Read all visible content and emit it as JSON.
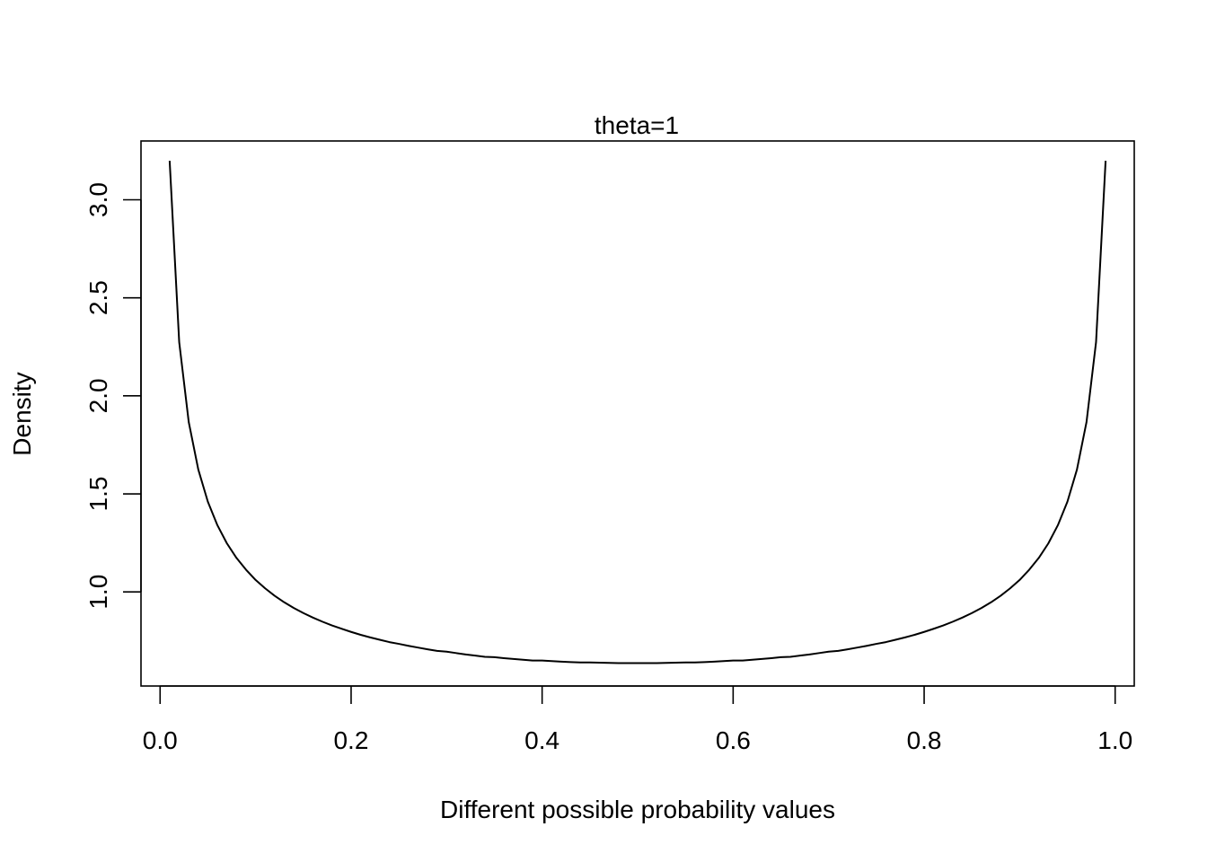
{
  "chart_data": {
    "type": "line",
    "title": "theta=1",
    "xlabel": "Different possible probability values",
    "ylabel": "Density",
    "xlim": [
      -0.02,
      1.02
    ],
    "ylim": [
      0.52,
      3.3
    ],
    "grid": false,
    "legend": "none",
    "x_ticks": [
      0.0,
      0.2,
      0.4,
      0.6,
      0.8,
      1.0
    ],
    "x_tick_labels": [
      "0.0",
      "0.2",
      "0.4",
      "0.6",
      "0.8",
      "1.0"
    ],
    "y_ticks": [
      1.0,
      1.5,
      2.0,
      2.5,
      3.0
    ],
    "y_tick_labels": [
      "1.0",
      "1.5",
      "2.0",
      "2.5",
      "3.0"
    ],
    "line_color": "#000000",
    "series": [
      {
        "x": [
          0.01,
          0.02,
          0.03,
          0.04,
          0.05,
          0.06,
          0.07,
          0.08,
          0.09,
          0.1,
          0.11,
          0.12,
          0.13,
          0.14,
          0.15,
          0.16,
          0.17,
          0.18,
          0.19,
          0.2,
          0.21,
          0.22,
          0.23,
          0.24,
          0.25,
          0.26,
          0.27,
          0.28,
          0.29,
          0.3,
          0.31,
          0.32,
          0.33,
          0.34,
          0.35,
          0.36,
          0.37,
          0.38,
          0.39,
          0.4,
          0.41,
          0.42,
          0.43,
          0.44,
          0.45,
          0.46,
          0.47,
          0.48,
          0.49,
          0.5,
          0.51,
          0.52,
          0.53,
          0.54,
          0.55,
          0.56,
          0.57,
          0.58,
          0.59,
          0.6,
          0.61,
          0.62,
          0.63,
          0.64,
          0.65,
          0.66,
          0.67,
          0.68,
          0.69,
          0.7,
          0.71,
          0.72,
          0.73,
          0.74,
          0.75,
          0.76,
          0.77,
          0.78,
          0.79,
          0.8,
          0.81,
          0.82,
          0.83,
          0.84,
          0.85,
          0.86,
          0.87,
          0.88,
          0.89,
          0.9,
          0.91,
          0.92,
          0.93,
          0.94,
          0.95,
          0.96,
          0.97,
          0.98,
          0.99
        ],
        "y": [
          3.199,
          2.274,
          1.866,
          1.624,
          1.46,
          1.34,
          1.247,
          1.173,
          1.113,
          1.061,
          1.018,
          0.98,
          0.947,
          0.918,
          0.892,
          0.869,
          0.848,
          0.829,
          0.812,
          0.796,
          0.781,
          0.768,
          0.756,
          0.744,
          0.735,
          0.725,
          0.716,
          0.707,
          0.699,
          0.695,
          0.688,
          0.681,
          0.675,
          0.669,
          0.667,
          0.662,
          0.658,
          0.654,
          0.65,
          0.65,
          0.647,
          0.644,
          0.642,
          0.64,
          0.64,
          0.639,
          0.638,
          0.637,
          0.637,
          0.637,
          0.637,
          0.637,
          0.638,
          0.639,
          0.64,
          0.64,
          0.642,
          0.644,
          0.647,
          0.65,
          0.65,
          0.654,
          0.658,
          0.662,
          0.667,
          0.669,
          0.675,
          0.681,
          0.688,
          0.695,
          0.699,
          0.707,
          0.716,
          0.725,
          0.735,
          0.744,
          0.756,
          0.768,
          0.781,
          0.796,
          0.812,
          0.829,
          0.848,
          0.869,
          0.892,
          0.918,
          0.947,
          0.98,
          1.018,
          1.061,
          1.113,
          1.173,
          1.247,
          1.34,
          1.46,
          1.624,
          1.866,
          2.274,
          3.199
        ]
      }
    ]
  }
}
